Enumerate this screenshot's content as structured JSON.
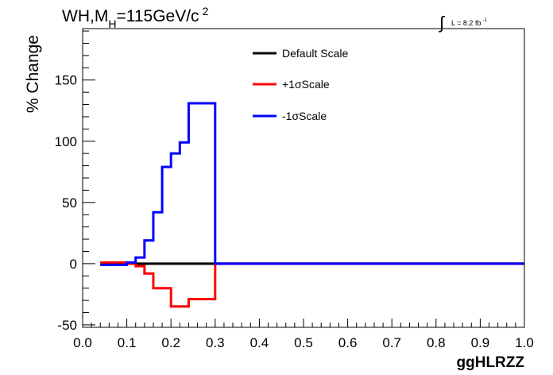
{
  "chart_data": {
    "type": "line",
    "step": true,
    "title_main": "WH,M",
    "title_sub": "H",
    "title_rest": "=115GeV/c",
    "title_sup": "2",
    "lumi_integral": "∫",
    "lumi_text": "L = 8.2 fb",
    "lumi_sup": "-1",
    "xlabel": "ggHLRZZ",
    "ylabel": "% Change",
    "xlim": [
      0.0,
      1.0
    ],
    "ylim": [
      -52,
      192
    ],
    "x_ticks": [
      "0.0",
      "0.1",
      "0.2",
      "0.3",
      "0.4",
      "0.5",
      "0.6",
      "0.7",
      "0.8",
      "0.9",
      "1.0"
    ],
    "y_ticks": [
      "-50",
      "0",
      "50",
      "100",
      "150"
    ],
    "legend": {
      "position": "top-center",
      "entries": [
        {
          "label": "Default Scale",
          "color": "#000000"
        },
        {
          "label": "+1σScale",
          "color": "#ff0000"
        },
        {
          "label": "-1σScale",
          "color": "#0000ff"
        }
      ]
    },
    "bin_edges": [
      0.04,
      0.1,
      0.12,
      0.14,
      0.16,
      0.18,
      0.2,
      0.22,
      0.24,
      0.3,
      1.0
    ],
    "series": [
      {
        "name": "Default Scale",
        "color": "#000000",
        "values": [
          0,
          0,
          0,
          0,
          0,
          0,
          0,
          0,
          0,
          0
        ]
      },
      {
        "name": "+1σScale",
        "color": "#ff0000",
        "values": [
          1,
          0,
          -2,
          -8,
          -20,
          -20,
          -35,
          -35,
          -29,
          0
        ]
      },
      {
        "name": "-1σScale",
        "color": "#0000ff",
        "values": [
          -1,
          1,
          5,
          19,
          42,
          79,
          90,
          99,
          131,
          0
        ]
      }
    ]
  }
}
